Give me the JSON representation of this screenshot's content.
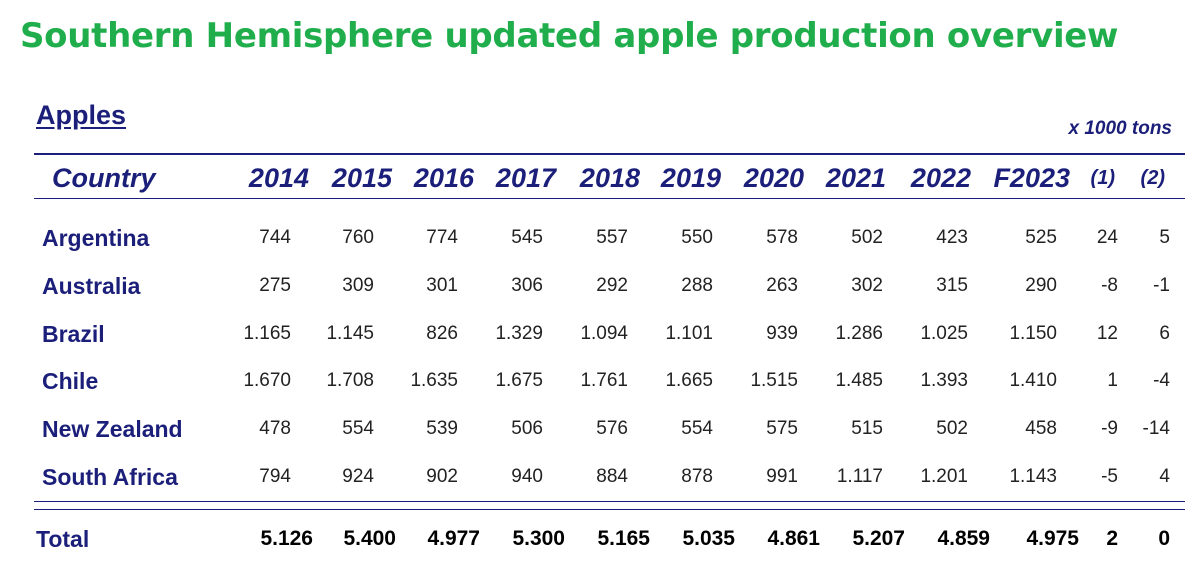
{
  "title": "Southern Hemisphere updated apple production overview",
  "section_label": "Apples",
  "units": "x 1000 tons",
  "columns": {
    "country": "Country",
    "years": [
      "2014",
      "2015",
      "2016",
      "2017",
      "2018",
      "2019",
      "2020",
      "2021",
      "2022",
      "F2023"
    ],
    "extra": [
      "(1)",
      "(2)"
    ]
  },
  "rows": [
    {
      "country": "Argentina",
      "values": [
        "744",
        "760",
        "774",
        "545",
        "557",
        "550",
        "578",
        "502",
        "423",
        "525",
        "24",
        "5"
      ]
    },
    {
      "country": "Australia",
      "values": [
        "275",
        "309",
        "301",
        "306",
        "292",
        "288",
        "263",
        "302",
        "315",
        "290",
        "-8",
        "-1"
      ]
    },
    {
      "country": "Brazil",
      "values": [
        "1.165",
        "1.145",
        "826",
        "1.329",
        "1.094",
        "1.101",
        "939",
        "1.286",
        "1.025",
        "1.150",
        "12",
        "6"
      ]
    },
    {
      "country": "Chile",
      "values": [
        "1.670",
        "1.708",
        "1.635",
        "1.675",
        "1.761",
        "1.665",
        "1.515",
        "1.485",
        "1.393",
        "1.410",
        "1",
        "-4"
      ]
    },
    {
      "country": "New Zealand",
      "values": [
        "478",
        "554",
        "539",
        "506",
        "576",
        "554",
        "575",
        "515",
        "502",
        "458",
        "-9",
        "-14"
      ]
    },
    {
      "country": "South Africa",
      "values": [
        "794",
        "924",
        "902",
        "940",
        "884",
        "878",
        "991",
        "1.117",
        "1.201",
        "1.143",
        "-5",
        "4"
      ]
    }
  ],
  "total": {
    "label": "Total",
    "values": [
      "5.126",
      "5.400",
      "4.977",
      "5.300",
      "5.165",
      "5.035",
      "4.861",
      "5.207",
      "4.859",
      "4.975",
      "2",
      "0"
    ]
  }
}
